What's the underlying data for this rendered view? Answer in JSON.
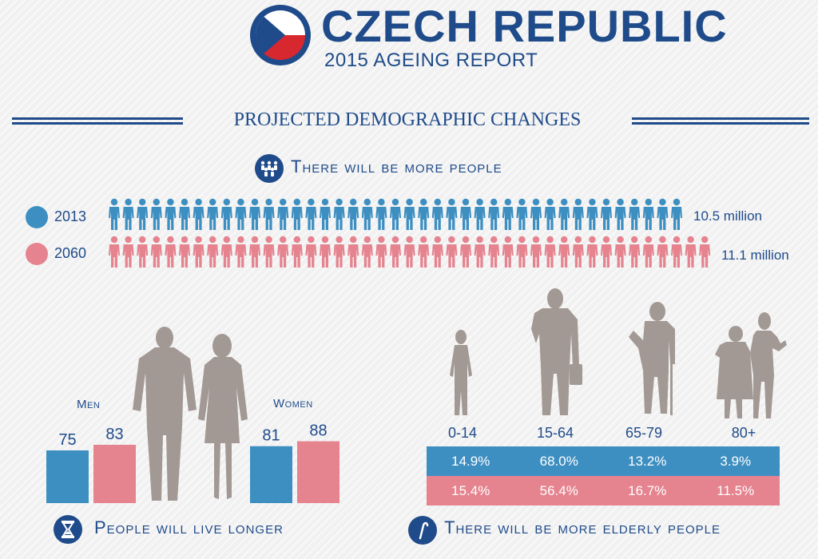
{
  "header": {
    "title": "CZECH REPUBLIC",
    "subtitle": "2015 AGEING REPORT"
  },
  "section_title": "PROJECTED DEMOGRAPHIC CHANGES",
  "colors": {
    "navy": "#1f4b8a",
    "blue_2013": "#3e8fc1",
    "pink_2060": "#e5838f",
    "silhouette": "#a39994",
    "flag_red": "#d7282f",
    "flag_white": "#ffffff"
  },
  "population": {
    "heading": "There will be more people",
    "heading_icon": "people-group-icon",
    "rows": [
      {
        "year": "2013",
        "total": "10.5 million",
        "figures": 41,
        "color": "#3e8fc1"
      },
      {
        "year": "2060",
        "total": "11.1 million",
        "figures": 43,
        "color": "#e5838f"
      }
    ]
  },
  "life_expectancy": {
    "heading": "People will live longer",
    "heading_icon": "hourglass-icon",
    "groups": [
      {
        "label": "Men",
        "values": [
          75,
          83
        ]
      },
      {
        "label": "Women",
        "values": [
          81,
          88
        ]
      }
    ]
  },
  "age_structure": {
    "heading": "There will be more elderly people",
    "heading_icon": "cane-icon",
    "groups": [
      "0-14",
      "15-64",
      "65-79",
      "80+"
    ],
    "rows": [
      {
        "year": "2013",
        "values": [
          "14.9%",
          "68.0%",
          "13.2%",
          "3.9%"
        ]
      },
      {
        "year": "2060",
        "values": [
          "15.4%",
          "56.4%",
          "16.7%",
          "11.5%"
        ]
      }
    ]
  }
}
